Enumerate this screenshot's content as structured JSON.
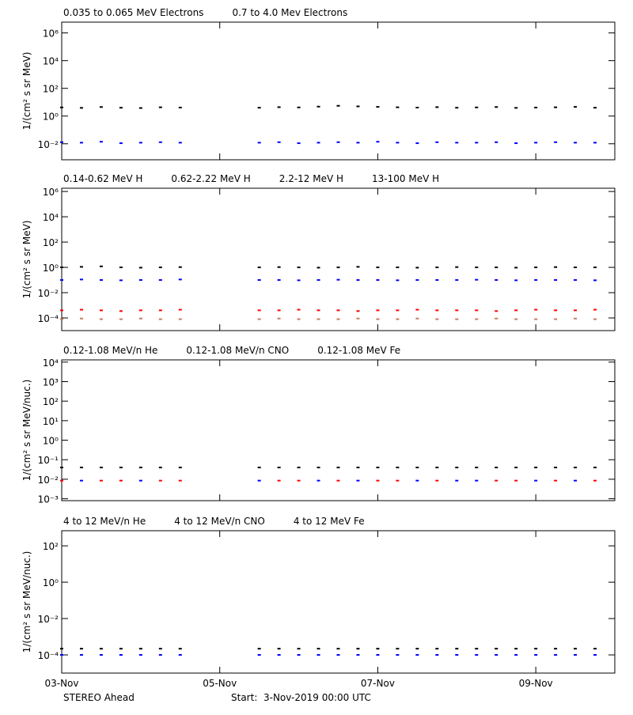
{
  "chart_data": [
    {
      "type": "scatter",
      "ylabel": "1/(cm² s sr MeV)",
      "log": true,
      "xlim": [
        0,
        7
      ],
      "ylim": [
        0.0007,
        6000000
      ],
      "yticks": [
        {
          "value": 1000000,
          "label": "10⁶"
        },
        {
          "value": 10000,
          "label": "10⁴"
        },
        {
          "value": 100,
          "label": "10²"
        },
        {
          "value": 1,
          "label": "10⁰"
        },
        {
          "value": 0.01,
          "label": "10⁻²"
        }
      ],
      "x": [
        0,
        0.25,
        0.5,
        0.75,
        1,
        1.25,
        1.5,
        1.75,
        2,
        2.25,
        2.5,
        2.75,
        3,
        3.25,
        3.5,
        3.75,
        4,
        4.25,
        4.5,
        4.75,
        5,
        5.25,
        5.5,
        5.75,
        6,
        6.25,
        6.5,
        6.75
      ],
      "series": [
        {
          "name": "0.035 to 0.065 MeV Electrons",
          "color": "#000000",
          "values": [
            4.2,
            3.9,
            4.5,
            4.0,
            3.8,
            4.3,
            4.1,
            null,
            null,
            null,
            4.0,
            4.4,
            4.2,
            4.8,
            5.5,
            5.0,
            4.6,
            4.3,
            4.1,
            4.4,
            4.0,
            4.2,
            4.5,
            3.9,
            4.1,
            4.3,
            4.6,
            4.0
          ]
        },
        {
          "name": "0.7 to 4.0 Mev Electrons",
          "color": "#0000ff",
          "values": [
            0.013,
            0.012,
            0.014,
            0.011,
            0.012,
            0.013,
            0.012,
            null,
            null,
            null,
            0.012,
            0.013,
            0.011,
            0.012,
            0.013,
            0.012,
            0.014,
            0.012,
            0.011,
            0.013,
            0.012,
            0.012,
            0.013,
            0.011,
            0.012,
            0.013,
            0.012,
            0.012
          ]
        }
      ]
    },
    {
      "type": "scatter",
      "ylabel": "1/(cm² s sr MeV)",
      "log": true,
      "xlim": [
        0,
        7
      ],
      "ylim": [
        1e-05,
        1800000
      ],
      "yticks": [
        {
          "value": 1000000,
          "label": "10⁶"
        },
        {
          "value": 10000,
          "label": "10⁴"
        },
        {
          "value": 100,
          "label": "10²"
        },
        {
          "value": 1,
          "label": "10⁰"
        },
        {
          "value": 0.01,
          "label": "10⁻²"
        },
        {
          "value": 0.0001,
          "label": "10⁻⁴"
        }
      ],
      "x": [
        0,
        0.25,
        0.5,
        0.75,
        1,
        1.25,
        1.5,
        1.75,
        2,
        2.25,
        2.5,
        2.75,
        3,
        3.25,
        3.5,
        3.75,
        4,
        4.25,
        4.5,
        4.75,
        5,
        5.25,
        5.5,
        5.75,
        6,
        6.25,
        6.5,
        6.75
      ],
      "series": [
        {
          "name": "0.14-0.62 MeV H",
          "color": "#000000",
          "values": [
            1.0,
            1.1,
            1.2,
            1.0,
            0.95,
            1.0,
            1.05,
            null,
            null,
            null,
            1.0,
            1.05,
            1.0,
            0.95,
            1.0,
            1.1,
            1.0,
            1.0,
            0.95,
            1.0,
            1.05,
            1.0,
            1.0,
            0.95,
            1.0,
            1.05,
            1.0,
            1.0
          ]
        },
        {
          "name": "0.62-2.22 MeV H",
          "color": "#0000ff",
          "values": [
            0.1,
            0.11,
            0.1,
            0.095,
            0.1,
            0.1,
            0.11,
            null,
            null,
            null,
            0.1,
            0.1,
            0.095,
            0.1,
            0.105,
            0.1,
            0.1,
            0.095,
            0.1,
            0.1,
            0.1,
            0.105,
            0.1,
            0.095,
            0.1,
            0.1,
            0.1,
            0.095
          ]
        },
        {
          "name": "2.2-12 MeV H",
          "color": "#c87b5a",
          "values": [
            8e-05,
            9e-05,
            8e-05,
            8e-05,
            9e-05,
            8e-05,
            8e-05,
            null,
            null,
            null,
            8e-05,
            9e-05,
            8e-05,
            8e-05,
            8e-05,
            9e-05,
            8e-05,
            8e-05,
            9e-05,
            8e-05,
            8e-05,
            8e-05,
            9e-05,
            8e-05,
            8e-05,
            8e-05,
            9e-05,
            8e-05
          ]
        },
        {
          "name": "13-100 MeV H",
          "color": "#ff0000",
          "values": [
            0.0004,
            0.00045,
            0.0004,
            0.00035,
            0.0004,
            0.0004,
            0.00045,
            null,
            null,
            null,
            0.0004,
            0.0004,
            0.00045,
            0.0004,
            0.0004,
            0.00035,
            0.0004,
            0.0004,
            0.00045,
            0.0004,
            0.0004,
            0.0004,
            0.00035,
            0.0004,
            0.00045,
            0.0004,
            0.0004,
            0.00045
          ]
        }
      ]
    },
    {
      "type": "scatter",
      "ylabel": "1/(cm² s sr MeV/nuc.)",
      "log": true,
      "xlim": [
        0,
        7
      ],
      "ylim": [
        0.0008,
        13000
      ],
      "yticks": [
        {
          "value": 10000,
          "label": "10⁴"
        },
        {
          "value": 1000,
          "label": "10³"
        },
        {
          "value": 100,
          "label": "10²"
        },
        {
          "value": 10,
          "label": "10¹"
        },
        {
          "value": 1,
          "label": "10⁰"
        },
        {
          "value": 0.1,
          "label": "10⁻¹"
        },
        {
          "value": 0.01,
          "label": "10⁻²"
        },
        {
          "value": 0.001,
          "label": "10⁻³"
        }
      ],
      "x": [
        0,
        0.25,
        0.5,
        0.75,
        1,
        1.25,
        1.5,
        1.75,
        2,
        2.25,
        2.5,
        2.75,
        3,
        3.25,
        3.5,
        3.75,
        4,
        4.25,
        4.5,
        4.75,
        5,
        5.25,
        5.5,
        5.75,
        6,
        6.25,
        6.5,
        6.75
      ],
      "series": [
        {
          "name": "0.12-1.08 MeV/n He",
          "color": "#000000",
          "values": [
            0.04,
            0.04,
            0.04,
            0.04,
            0.04,
            0.04,
            0.04,
            null,
            null,
            null,
            0.04,
            0.04,
            0.04,
            0.04,
            0.04,
            0.04,
            0.04,
            0.04,
            0.04,
            0.04,
            0.04,
            0.04,
            0.04,
            0.04,
            0.04,
            0.04,
            0.04,
            0.04
          ]
        },
        {
          "name": "0.12-1.08 MeV/n CNO",
          "color": "#0000ff",
          "values": [
            null,
            0.0085,
            null,
            null,
            0.0085,
            null,
            null,
            null,
            null,
            null,
            0.0085,
            null,
            null,
            0.0085,
            null,
            0.0085,
            null,
            null,
            0.0085,
            null,
            0.0085,
            0.0085,
            null,
            null,
            0.0085,
            null,
            0.0085,
            null
          ]
        },
        {
          "name": "0.12-1.08 MeV Fe",
          "color": "#ff0000",
          "values": [
            0.0085,
            null,
            0.0085,
            0.0085,
            null,
            0.0085,
            0.0085,
            null,
            null,
            null,
            null,
            0.0085,
            0.0085,
            null,
            0.0085,
            null,
            0.0085,
            0.0085,
            null,
            0.0085,
            null,
            null,
            0.0085,
            0.0085,
            null,
            0.0085,
            null,
            0.0085
          ]
        }
      ]
    },
    {
      "type": "scatter",
      "ylabel": "1/(cm² s sr MeV/nuc.)",
      "log": true,
      "xlim": [
        0,
        7
      ],
      "ylim": [
        1e-05,
        680
      ],
      "yticks": [
        {
          "value": 100,
          "label": "10²"
        },
        {
          "value": 1,
          "label": "10⁰"
        },
        {
          "value": 0.01,
          "label": "10⁻²"
        },
        {
          "value": 0.0001,
          "label": "10⁻⁴"
        }
      ],
      "xticks": [
        {
          "value": 0,
          "label": "03-Nov"
        },
        {
          "value": 2,
          "label": "05-Nov"
        },
        {
          "value": 4,
          "label": "07-Nov"
        },
        {
          "value": 6,
          "label": "09-Nov"
        }
      ],
      "x": [
        0,
        0.25,
        0.5,
        0.75,
        1,
        1.25,
        1.5,
        1.75,
        2,
        2.25,
        2.5,
        2.75,
        3,
        3.25,
        3.5,
        3.75,
        4,
        4.25,
        4.5,
        4.75,
        5,
        5.25,
        5.5,
        5.75,
        6,
        6.25,
        6.5,
        6.75
      ],
      "series": [
        {
          "name": "4 to 12 MeV/n He",
          "color": "#000000",
          "values": [
            0.00022,
            0.00022,
            0.00022,
            0.00022,
            0.00022,
            0.00022,
            0.00022,
            null,
            null,
            null,
            0.00022,
            0.00022,
            0.00022,
            0.00022,
            0.00022,
            0.00022,
            0.00022,
            0.00022,
            0.00022,
            0.00022,
            0.00022,
            0.00022,
            0.00022,
            0.00022,
            0.00022,
            0.00022,
            0.00022,
            0.00022
          ]
        },
        {
          "name": "4 to 12 MeV/n CNO",
          "color": "#0000ff",
          "values": [
            0.0001,
            0.0001,
            0.0001,
            0.0001,
            0.0001,
            0.0001,
            0.0001,
            null,
            null,
            null,
            0.0001,
            0.0001,
            0.0001,
            0.0001,
            0.0001,
            0.0001,
            0.0001,
            0.0001,
            0.0001,
            0.0001,
            0.0001,
            0.0001,
            0.0001,
            0.0001,
            0.0001,
            0.0001,
            0.0001,
            0.0001
          ]
        },
        {
          "name": "4 to 12 MeV Fe",
          "color": "#ff0000",
          "values": [
            null,
            null,
            null,
            null,
            null,
            null,
            null,
            null,
            null,
            null,
            null,
            null,
            null,
            null,
            null,
            null,
            null,
            null,
            null,
            null,
            null,
            null,
            null,
            null,
            null,
            null,
            null,
            null
          ]
        }
      ]
    }
  ],
  "footer_left": "STEREO Ahead",
  "footer_start": "Start:  3-Nov-2019 00:00 UTC"
}
